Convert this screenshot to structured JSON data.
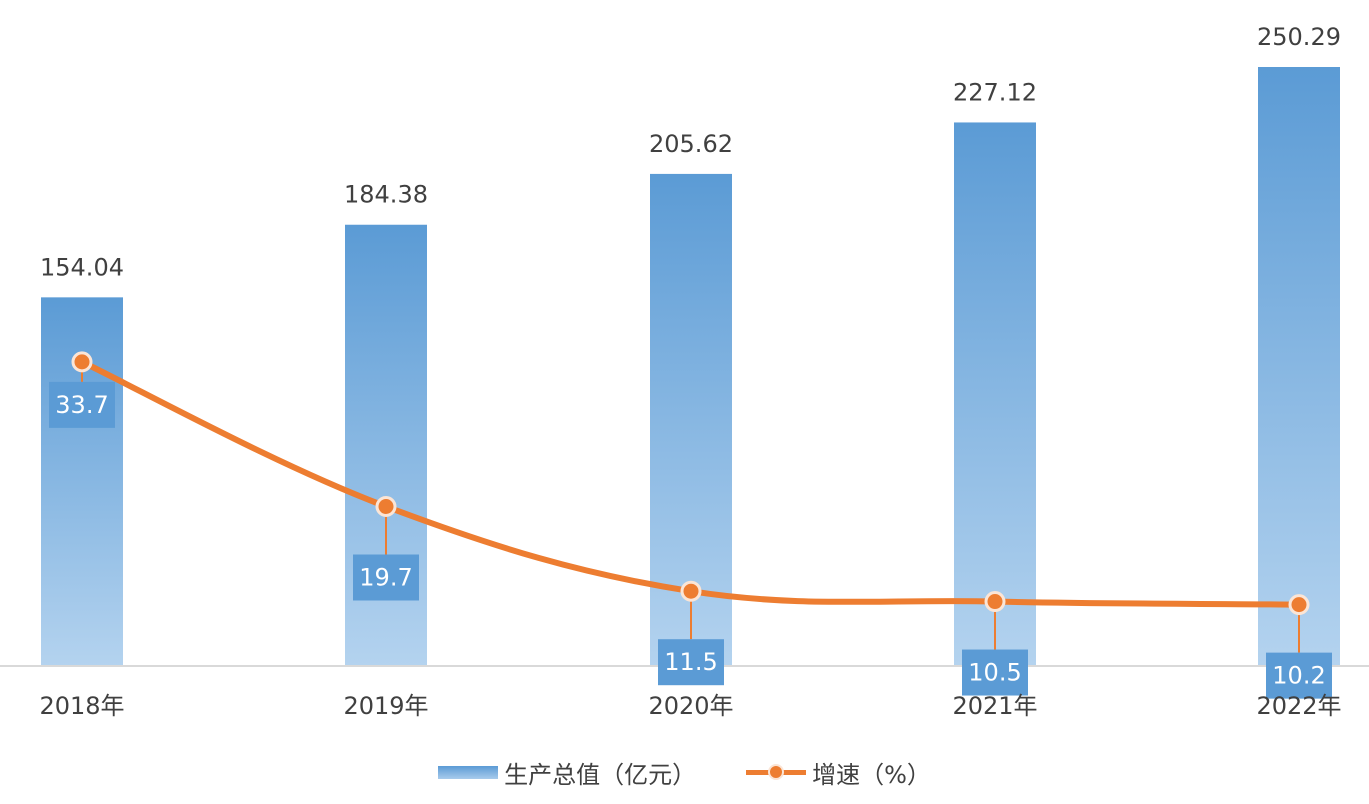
{
  "chart_data": {
    "type": "bar",
    "categories": [
      "2018年",
      "2019年",
      "2020年",
      "2021年",
      "2022年"
    ],
    "series": [
      {
        "name": "生产总值（亿元）",
        "type": "bar",
        "values": [
          154.04,
          184.38,
          205.62,
          227.12,
          250.29
        ]
      },
      {
        "name": "增速（%）",
        "type": "line",
        "values": [
          33.7,
          19.7,
          11.5,
          10.5,
          10.2
        ]
      }
    ],
    "bar_data_labels": [
      "154.04",
      "184.38",
      "205.62",
      "227.12",
      "250.29"
    ],
    "line_data_labels": [
      "33.7",
      "19.7",
      "11.5",
      "10.5",
      "10.2"
    ],
    "title": "",
    "xlabel": "",
    "ylabel": "",
    "grid": false,
    "legend_position": "bottom",
    "colors": {
      "bar_top": "#5b9bd5",
      "bar_bottom": "#b4d3ef",
      "line": "#ed7d31",
      "marker_ring": "#fbe5d6",
      "label_box": "#5b9bd5"
    }
  }
}
